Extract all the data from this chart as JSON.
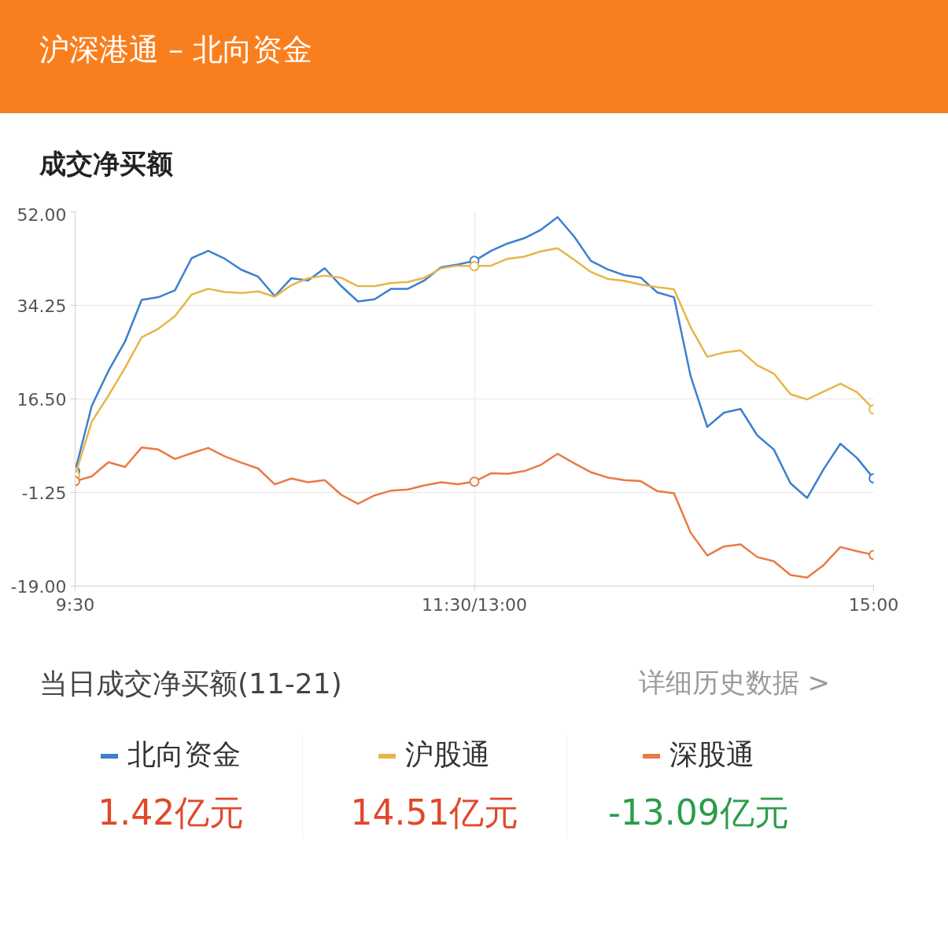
{
  "chart_data": {
    "type": "line",
    "title": "沪深港通 – 北向资金",
    "subtitle": "成交净买额",
    "annotations": [
      "当日成交净买额(11-21)",
      "详细历史数据 >",
      "1.42亿元",
      "14.51亿元",
      "-13.09亿元"
    ],
    "categories": [
      "9:30",
      null,
      null,
      null,
      null,
      null,
      null,
      null,
      null,
      null,
      null,
      null,
      null,
      null,
      null,
      null,
      null,
      null,
      null,
      null,
      null,
      null,
      null,
      null,
      "11:30/13:00",
      null,
      null,
      null,
      null,
      null,
      null,
      null,
      null,
      null,
      null,
      null,
      null,
      null,
      null,
      null,
      null,
      null,
      null,
      null,
      null,
      null,
      null,
      null,
      "15:00"
    ],
    "ylim": [
      -19,
      52
    ],
    "yticks": [
      {
        "value": 52,
        "label": "52.00"
      },
      {
        "value": 34.25,
        "label": "34.25"
      },
      {
        "value": 16.5,
        "label": "16.50"
      },
      {
        "value": -1.25,
        "label": "-1.25"
      },
      {
        "value": -19,
        "label": "-19.00"
      }
    ],
    "grid": true,
    "legend": "bottom",
    "line_style": "solid",
    "series": [
      {
        "name": "北向资金",
        "color": "#3d7fd1",
        "values": [
          2.8,
          15.2,
          21.8,
          27.4,
          35.3,
          35.8,
          37.1,
          43.2,
          44.6,
          43.1,
          41.0,
          39.7,
          36.0,
          39.4,
          39.0,
          41.3,
          37.9,
          35.0,
          35.4,
          37.4,
          37.4,
          39.0,
          41.5,
          42.0,
          42.7,
          44.6,
          46.0,
          47.0,
          48.6,
          51.0,
          47.3,
          42.7,
          41.1,
          40.0,
          39.5,
          36.7,
          35.8,
          20.8,
          11.2,
          13.9,
          14.6,
          9.6,
          6.9,
          0.5,
          -2.3,
          3.2,
          8.0,
          5.3,
          1.42
        ]
      },
      {
        "name": "沪股通",
        "color": "#e8b54a",
        "values": [
          2.0,
          12.2,
          17.1,
          22.4,
          28.2,
          29.8,
          32.2,
          36.3,
          37.4,
          36.8,
          36.6,
          36.9,
          35.9,
          38.1,
          39.4,
          39.9,
          39.5,
          37.9,
          37.9,
          38.5,
          38.7,
          39.5,
          41.3,
          41.8,
          41.7,
          41.8,
          43.1,
          43.5,
          44.5,
          45.1,
          42.9,
          40.6,
          39.3,
          38.9,
          38.2,
          37.7,
          37.3,
          30.1,
          24.5,
          25.3,
          25.7,
          22.9,
          21.3,
          17.4,
          16.4,
          17.9,
          19.4,
          17.8,
          14.51
        ]
      },
      {
        "name": "深股通",
        "color": "#ea7a45",
        "values": [
          0.9,
          1.8,
          4.5,
          3.6,
          7.3,
          6.9,
          5.1,
          6.2,
          7.2,
          5.6,
          4.4,
          3.3,
          0.3,
          1.4,
          0.7,
          1.1,
          -1.7,
          -3.4,
          -1.8,
          -0.9,
          -0.7,
          0.1,
          0.7,
          0.3,
          0.8,
          2.4,
          2.3,
          2.8,
          4.0,
          6.1,
          4.3,
          2.6,
          1.6,
          1.1,
          0.9,
          -1.0,
          -1.4,
          -8.9,
          -13.2,
          -11.5,
          -11.1,
          -13.5,
          -14.3,
          -16.9,
          -17.4,
          -15.0,
          -11.6,
          -12.4,
          -13.09
        ]
      }
    ]
  }
}
